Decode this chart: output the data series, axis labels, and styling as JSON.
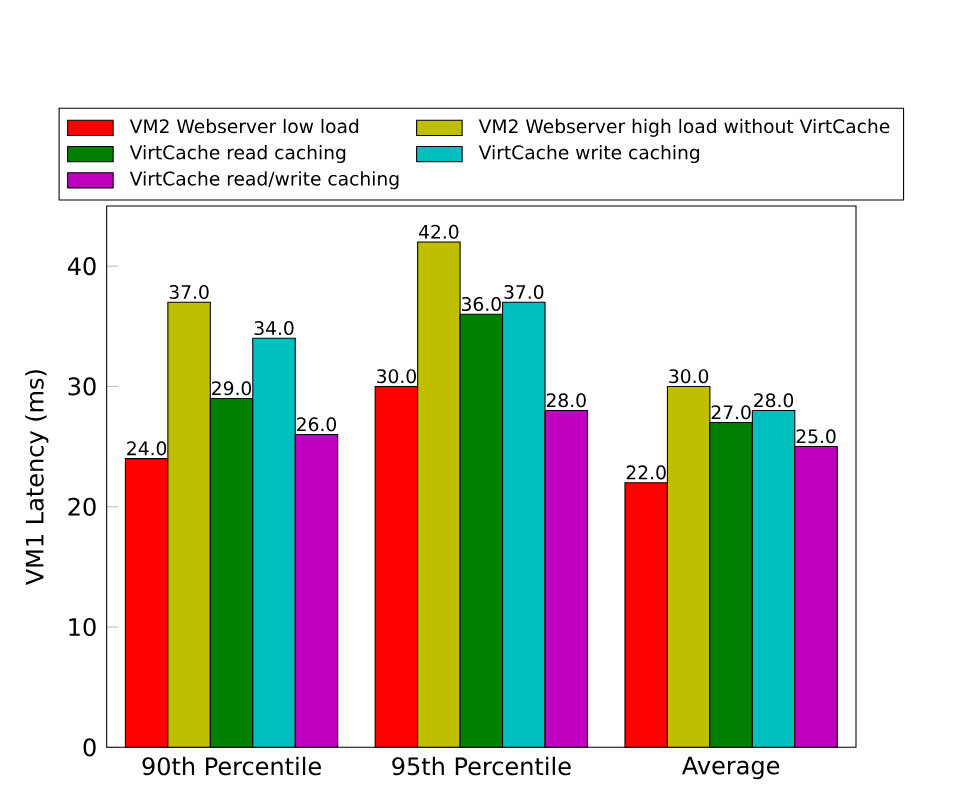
{
  "chart_data": {
    "type": "bar",
    "ylabel": "VM1 Latency (ms)",
    "categories": [
      "90th Percentile",
      "95th Percentile",
      "Average"
    ],
    "ylim": [
      0,
      45
    ],
    "yticks": [
      0,
      10,
      20,
      30,
      40
    ],
    "legend": "top",
    "series": [
      {
        "name": "VM2 Webserver low load",
        "color": "#ff0000",
        "values": [
          24,
          30,
          22
        ],
        "value_labels": [
          "24.0",
          "30.0",
          "22.0"
        ]
      },
      {
        "name": "VM2 Webserver high load without VirtCache",
        "color": "#bfbf00",
        "values": [
          37,
          42,
          30
        ],
        "value_labels": [
          "37.0",
          "42.0",
          "30.0"
        ]
      },
      {
        "name": "VirtCache read caching",
        "color": "#007f00",
        "values": [
          29,
          36,
          27
        ],
        "value_labels": [
          "29.0",
          "36.0",
          "27.0"
        ]
      },
      {
        "name": "VirtCache write caching",
        "color": "#00bfbf",
        "values": [
          34,
          37,
          28
        ],
        "value_labels": [
          "34.0",
          "37.0",
          "28.0"
        ]
      },
      {
        "name": "VirtCache read/write caching",
        "color": "#bf00bf",
        "values": [
          26,
          28,
          25
        ],
        "value_labels": [
          "26.0",
          "28.0",
          "25.0"
        ]
      }
    ]
  }
}
